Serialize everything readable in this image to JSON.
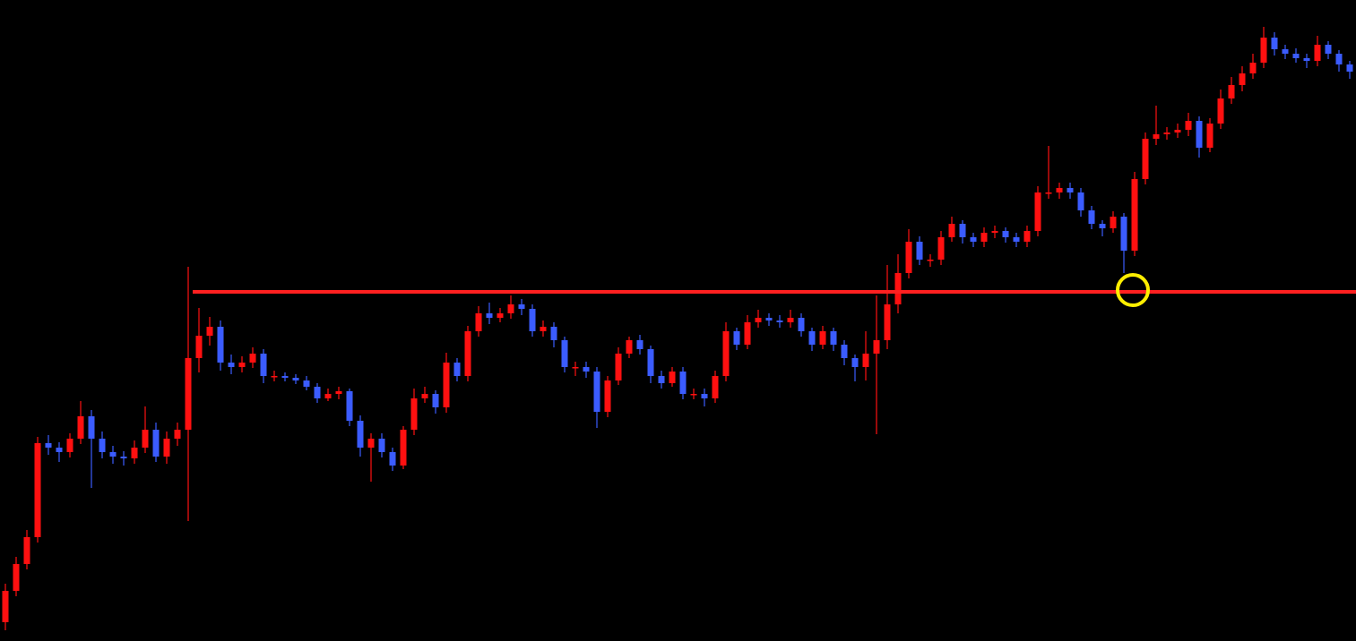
{
  "chart_data": {
    "type": "candlestick",
    "ylim": [
      0,
      716
    ],
    "up_color": "#ff1010",
    "down_color": "#3b5cff",
    "background": "#000000",
    "hline": {
      "value": 390,
      "color": "#ff2020"
    },
    "open": [
      21,
      56,
      86,
      116,
      221,
      216,
      211,
      226,
      251,
      226,
      211,
      206,
      204,
      216,
      236,
      206,
      226,
      236,
      316,
      341,
      351,
      311,
      306,
      311,
      321,
      296,
      296,
      294,
      291,
      284,
      271,
      276,
      279,
      246,
      216,
      226,
      211,
      196,
      236,
      271,
      276,
      261,
      311,
      296,
      346,
      366,
      361,
      366,
      376,
      371,
      346,
      351,
      336,
      306,
      306,
      301,
      256,
      291,
      321,
      336,
      326,
      296,
      288,
      301,
      276,
      276,
      271,
      296,
      346,
      331,
      356,
      361,
      358,
      356,
      361,
      346,
      331,
      346,
      331,
      316,
      306,
      321,
      336,
      376,
      411,
      446,
      426,
      426,
      451,
      466,
      451,
      446,
      456,
      458,
      451,
      446,
      458,
      501,
      501,
      506,
      501,
      481,
      466,
      461,
      474,
      436,
      516,
      561,
      566,
      568,
      571,
      581,
      551,
      578,
      606,
      621,
      634,
      646,
      674,
      661,
      656,
      651,
      648,
      666,
      656,
      644
    ],
    "high": [
      64,
      94,
      124,
      228,
      230,
      222,
      232,
      268,
      258,
      234,
      218,
      212,
      224,
      262,
      244,
      234,
      244,
      418,
      372,
      362,
      358,
      320,
      318,
      328,
      326,
      302,
      300,
      298,
      296,
      288,
      282,
      284,
      282,
      252,
      232,
      232,
      216,
      240,
      282,
      284,
      280,
      322,
      316,
      352,
      374,
      378,
      372,
      386,
      382,
      376,
      358,
      356,
      340,
      312,
      312,
      306,
      296,
      328,
      340,
      342,
      330,
      302,
      306,
      306,
      282,
      282,
      302,
      356,
      350,
      364,
      370,
      366,
      364,
      370,
      366,
      350,
      352,
      350,
      336,
      320,
      346,
      386,
      420,
      432,
      460,
      452,
      432,
      458,
      474,
      470,
      456,
      462,
      464,
      462,
      456,
      464,
      508,
      553,
      512,
      512,
      506,
      486,
      470,
      480,
      478,
      524,
      568,
      598,
      574,
      578,
      590,
      586,
      584,
      616,
      630,
      642,
      656,
      686,
      680,
      666,
      662,
      656,
      676,
      670,
      660,
      648
    ],
    "low": [
      12,
      50,
      80,
      110,
      208,
      200,
      205,
      220,
      171,
      204,
      198,
      196,
      198,
      210,
      200,
      198,
      218,
      134,
      300,
      330,
      302,
      298,
      300,
      305,
      288,
      290,
      290,
      287,
      280,
      266,
      268,
      270,
      240,
      206,
      178,
      205,
      190,
      192,
      230,
      266,
      254,
      255,
      290,
      290,
      340,
      354,
      356,
      360,
      364,
      340,
      340,
      328,
      300,
      296,
      294,
      238,
      250,
      286,
      316,
      320,
      288,
      282,
      284,
      270,
      270,
      262,
      266,
      290,
      325,
      326,
      350,
      352,
      350,
      350,
      340,
      324,
      326,
      324,
      308,
      290,
      291,
      231,
      326,
      366,
      405,
      420,
      418,
      420,
      446,
      444,
      440,
      440,
      450,
      445,
      440,
      440,
      452,
      494,
      494,
      494,
      474,
      460,
      452,
      456,
      411,
      430,
      510,
      554,
      560,
      562,
      564,
      540,
      546,
      572,
      600,
      614,
      628,
      640,
      654,
      650,
      646,
      640,
      642,
      650,
      636,
      628
    ],
    "close": [
      56,
      86,
      116,
      221,
      216,
      211,
      226,
      251,
      226,
      211,
      206,
      204,
      216,
      236,
      206,
      226,
      236,
      316,
      341,
      351,
      311,
      306,
      311,
      321,
      296,
      296,
      294,
      291,
      284,
      271,
      276,
      279,
      246,
      216,
      226,
      211,
      196,
      236,
      271,
      276,
      261,
      311,
      296,
      346,
      366,
      361,
      366,
      376,
      371,
      346,
      351,
      336,
      306,
      306,
      301,
      256,
      291,
      321,
      336,
      326,
      296,
      288,
      301,
      276,
      276,
      271,
      296,
      346,
      331,
      356,
      361,
      358,
      356,
      361,
      346,
      331,
      346,
      331,
      316,
      306,
      321,
      336,
      376,
      411,
      446,
      426,
      426,
      451,
      466,
      451,
      446,
      456,
      458,
      451,
      446,
      458,
      501,
      501,
      506,
      501,
      481,
      466,
      461,
      474,
      436,
      516,
      561,
      566,
      568,
      571,
      581,
      551,
      578,
      606,
      621,
      634,
      646,
      674,
      661,
      656,
      651,
      648,
      666,
      656,
      644,
      636
    ]
  }
}
